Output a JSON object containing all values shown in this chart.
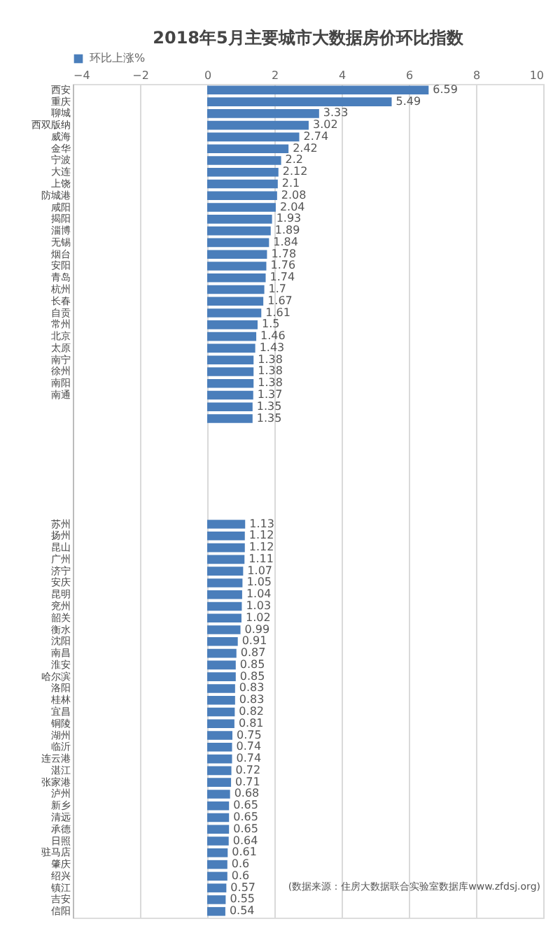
{
  "chart_data": {
    "type": "bar",
    "orientation": "horizontal",
    "title": "2018年5月主要城市大数据房价环比指数",
    "categories": [
      "西安",
      "重庆",
      "聊城",
      "西双版纳",
      "威海",
      "金华",
      "宁波",
      "大连",
      "上饶",
      "防城港",
      "咸阳",
      "揭阳",
      "淄博",
      "无锡",
      "烟台",
      "安阳",
      "青岛",
      "杭州",
      "长春",
      "自贡",
      "常州",
      "北京",
      "太原",
      "南宁",
      "徐州",
      "南阳",
      "南通",
      null,
      null,
      null,
      null,
      null,
      null,
      null,
      null,
      null,
      null,
      "苏州",
      "扬州",
      "昆山",
      "广州",
      "济宁",
      "安庆",
      "昆明",
      "兖州",
      "韶关",
      "衡水",
      "沈阳",
      "南昌",
      "淮安",
      "哈尔滨",
      "洛阳",
      "桂林",
      "宜昌",
      "铜陵",
      "湖州",
      "临沂",
      "连云港",
      "湛江",
      "张家港",
      "泸州",
      "新乡",
      "清远",
      "承德",
      "日照",
      "驻马店",
      "肇庆",
      "绍兴",
      "镇江",
      "吉安",
      "信阳"
    ],
    "series": [
      {
        "name": "环比上涨%",
        "color": "#4a7ebb",
        "values": [
          6.59,
          5.49,
          3.33,
          3.02,
          2.74,
          2.42,
          2.2,
          2.12,
          2.1,
          2.08,
          2.04,
          1.93,
          1.89,
          1.84,
          1.78,
          1.76,
          1.74,
          1.7,
          1.67,
          1.61,
          1.5,
          1.46,
          1.43,
          1.38,
          1.38,
          1.38,
          1.37,
          1.35,
          1.35,
          null,
          null,
          null,
          null,
          null,
          null,
          null,
          null,
          1.13,
          1.12,
          1.12,
          1.11,
          1.07,
          1.05,
          1.04,
          1.03,
          1.02,
          0.99,
          0.91,
          0.87,
          0.85,
          0.85,
          0.83,
          0.83,
          0.82,
          0.81,
          0.75,
          0.74,
          0.74,
          0.72,
          0.71,
          0.68,
          0.65,
          0.65,
          0.65,
          0.64,
          0.61,
          0.6,
          0.6,
          0.57,
          0.55,
          0.54
        ]
      }
    ],
    "xlim": [
      -4,
      10
    ],
    "xticks": [
      -4,
      -2,
      0,
      2,
      4,
      6,
      8,
      10
    ],
    "grid": "x",
    "legend": "top",
    "data_labels": true,
    "annotations": [
      "(数据来源：住房大数据联合实验室数据库www.zfdsj.org)"
    ]
  }
}
